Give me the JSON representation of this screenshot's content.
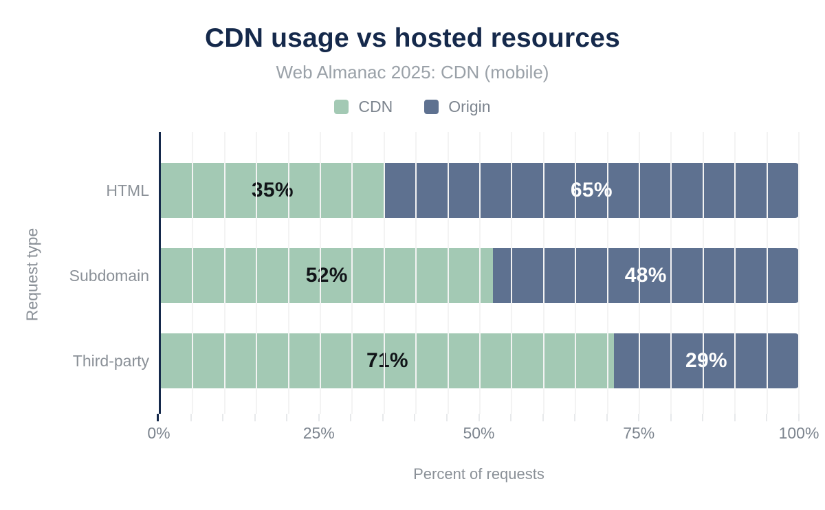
{
  "header": {
    "title": "CDN usage vs hosted resources",
    "subtitle": "Web Almanac 2025: CDN (mobile)"
  },
  "legend": [
    {
      "label": "CDN",
      "color": "#a3c9b4"
    },
    {
      "label": "Origin",
      "color": "#5e7190"
    }
  ],
  "chart_data": {
    "type": "bar",
    "orientation": "horizontal",
    "stacked": true,
    "title": "CDN usage vs hosted resources",
    "subtitle": "Web Almanac 2025: CDN (mobile)",
    "categories": [
      "HTML",
      "Subdomain",
      "Third-party"
    ],
    "series": [
      {
        "name": "CDN",
        "color": "#a3c9b4",
        "text_color": "#111418",
        "values": [
          35,
          52,
          71
        ]
      },
      {
        "name": "Origin",
        "color": "#5e7190",
        "text_color": "#ffffff",
        "values": [
          65,
          48,
          29
        ]
      }
    ],
    "value_suffix": "%",
    "xlabel": "Percent of requests",
    "ylabel": "Request type",
    "xlim": [
      0,
      100
    ],
    "major_ticks": [
      0,
      25,
      50,
      75,
      100
    ],
    "major_tick_labels": [
      "0%",
      "25%",
      "50%",
      "75%",
      "100%"
    ],
    "minor_tick_step": 5,
    "grid": "vertical-minor",
    "legend_position": "top"
  },
  "colors": {
    "title": "#15294b",
    "axis_line": "#15294b",
    "gridline": "#f3f3f3",
    "minor_tick": "#e7e9eb",
    "label_gray": "#8a9097"
  }
}
